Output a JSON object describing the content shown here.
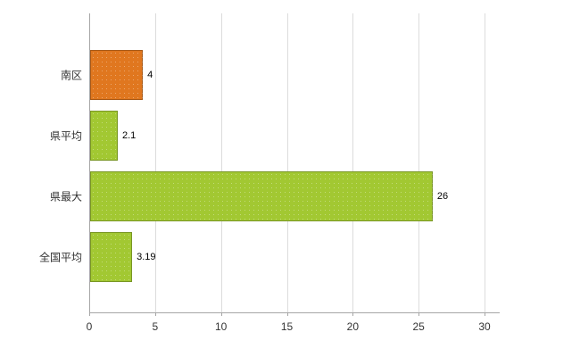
{
  "chart_data": {
    "type": "bar",
    "orientation": "horizontal",
    "title": "",
    "xlabel": "",
    "ylabel": "",
    "categories": [
      "南区",
      "県平均",
      "県最大",
      "全国平均"
    ],
    "values": [
      4,
      2.1,
      26,
      3.19
    ],
    "value_labels": [
      "4",
      "2.1",
      "26",
      "3.19"
    ],
    "bar_colors": [
      "#e0771f",
      "#a2c832",
      "#a2c832",
      "#a2c832"
    ],
    "xlim": [
      0,
      31
    ],
    "x_ticks": [
      0,
      5,
      10,
      15,
      20,
      25,
      30
    ],
    "grid": true,
    "legend": "none",
    "colors": {
      "grid": "#dcdcdc",
      "axis": "#a6a6a6",
      "text": "#333333",
      "background": "#ffffff"
    }
  }
}
